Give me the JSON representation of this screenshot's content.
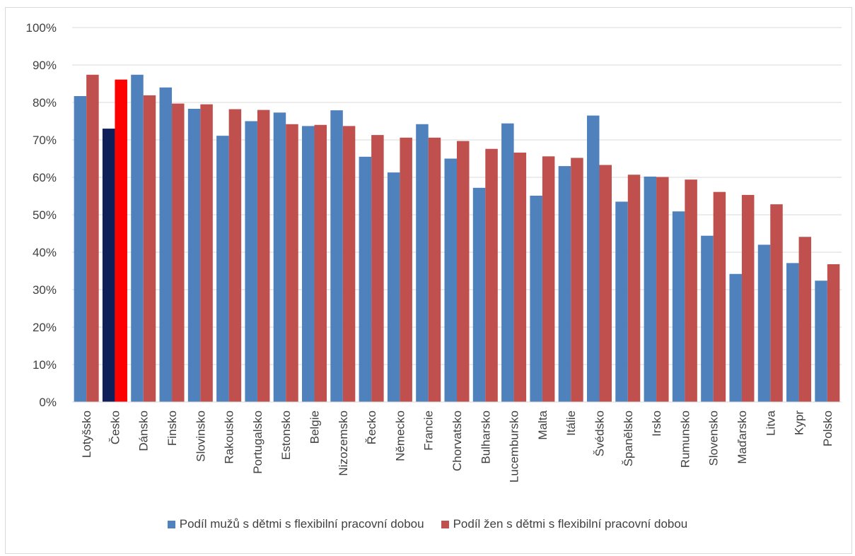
{
  "chart_data": {
    "type": "bar",
    "categories": [
      "Lotyšsko",
      "Česko",
      "Dánsko",
      "Finsko",
      "Slovinsko",
      "Rakousko",
      "Portugalsko",
      "Estonsko",
      "Belgie",
      "Nizozemsko",
      "Řecko",
      "Německo",
      "Francie",
      "Chorvatsko",
      "Bulharsko",
      "Lucembursko",
      "Malta",
      "Itálie",
      "Švédsko",
      "Španělsko",
      "Irsko",
      "Rumunsko",
      "Slovensko",
      "Maďarsko",
      "Litva",
      "Kypr",
      "Polsko"
    ],
    "series": [
      {
        "name": "Podíl mužů s dětmi s flexibilní pracovní dobou",
        "color": "#4f81bd",
        "values": [
          81.7,
          73.0,
          87.4,
          84.0,
          78.3,
          71.1,
          75.0,
          77.3,
          73.7,
          77.9,
          65.5,
          61.3,
          74.2,
          65.0,
          57.2,
          74.4,
          55.1,
          63.0,
          76.5,
          53.5,
          60.2,
          50.9,
          44.4,
          34.2,
          42.0,
          37.1,
          32.4
        ]
      },
      {
        "name": "Podíl žen s dětmi s flexibilní pracovní dobou",
        "color": "#c0504d",
        "values": [
          87.4,
          86.1,
          81.9,
          79.7,
          79.5,
          78.2,
          78.0,
          74.2,
          74.0,
          73.7,
          71.3,
          70.6,
          70.6,
          69.7,
          67.6,
          66.6,
          65.6,
          65.2,
          63.3,
          60.7,
          60.1,
          59.4,
          56.1,
          55.3,
          52.8,
          44.1,
          36.8
        ]
      }
    ],
    "highlight": {
      "category": "Česko",
      "colors": [
        "#0f1f5a",
        "#ff0000"
      ]
    },
    "yticks": [
      "0%",
      "10%",
      "20%",
      "30%",
      "40%",
      "50%",
      "60%",
      "70%",
      "80%",
      "90%",
      "100%"
    ],
    "ylim": [
      0,
      100
    ],
    "grid": true,
    "legend_position": "bottom",
    "gridline_color": "#d9d9d9",
    "title": "",
    "xlabel": "",
    "ylabel": ""
  }
}
